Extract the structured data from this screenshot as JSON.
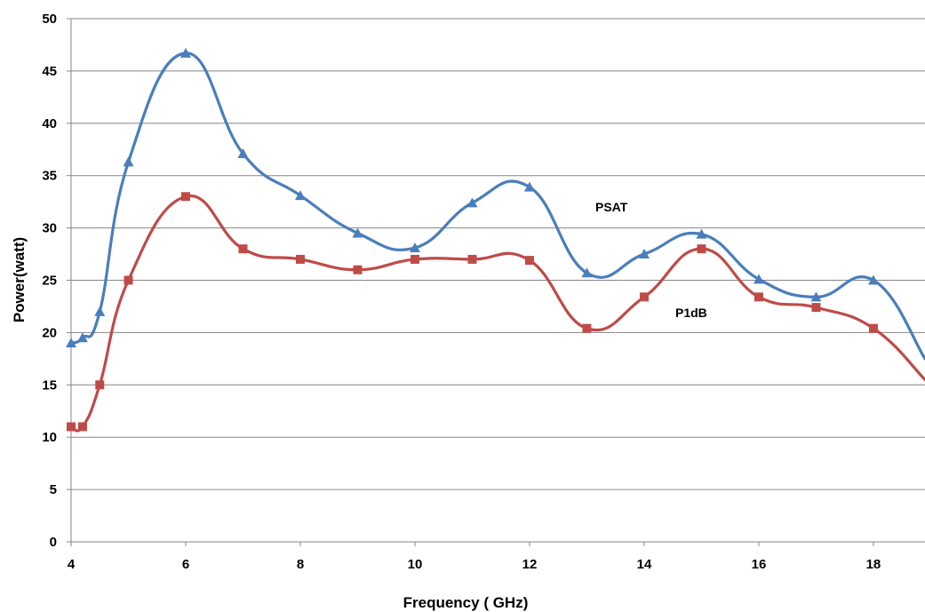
{
  "chart_data": {
    "type": "line",
    "title": "",
    "xlabel": "Frequency ( GHz)",
    "ylabel": "Power(watt)",
    "xlim": [
      4,
      18.9
    ],
    "ylim": [
      0,
      50
    ],
    "x_ticks": [
      4,
      6,
      8,
      10,
      12,
      14,
      16,
      18
    ],
    "y_ticks": [
      0,
      5,
      10,
      15,
      20,
      25,
      30,
      35,
      40,
      45,
      50
    ],
    "grid": "horizontal",
    "legend": "none",
    "series": [
      {
        "name": "PSAT",
        "color": "#4a7ebb",
        "marker": "triangle",
        "x": [
          4,
          4.2,
          4.5,
          5,
          6,
          7,
          8,
          9,
          10,
          11,
          12,
          13,
          14,
          15,
          16,
          17,
          18,
          18.9
        ],
        "y": [
          19,
          19.5,
          22,
          36.3,
          46.7,
          37.1,
          33.1,
          29.5,
          28.1,
          32.4,
          33.9,
          25.7,
          27.5,
          29.4,
          25.1,
          23.4,
          25,
          17.5
        ]
      },
      {
        "name": "P1dB",
        "color": "#be4b48",
        "marker": "square",
        "x": [
          4,
          4.2,
          4.5,
          5,
          6,
          7,
          8,
          9,
          10,
          11,
          12,
          13,
          14,
          15,
          16,
          17,
          18,
          18.9
        ],
        "y": [
          11,
          11,
          15,
          25,
          33,
          28,
          27,
          26,
          27,
          27,
          26.9,
          20.4,
          23.4,
          28,
          23.4,
          22.4,
          20.4,
          15.5
        ]
      }
    ]
  }
}
